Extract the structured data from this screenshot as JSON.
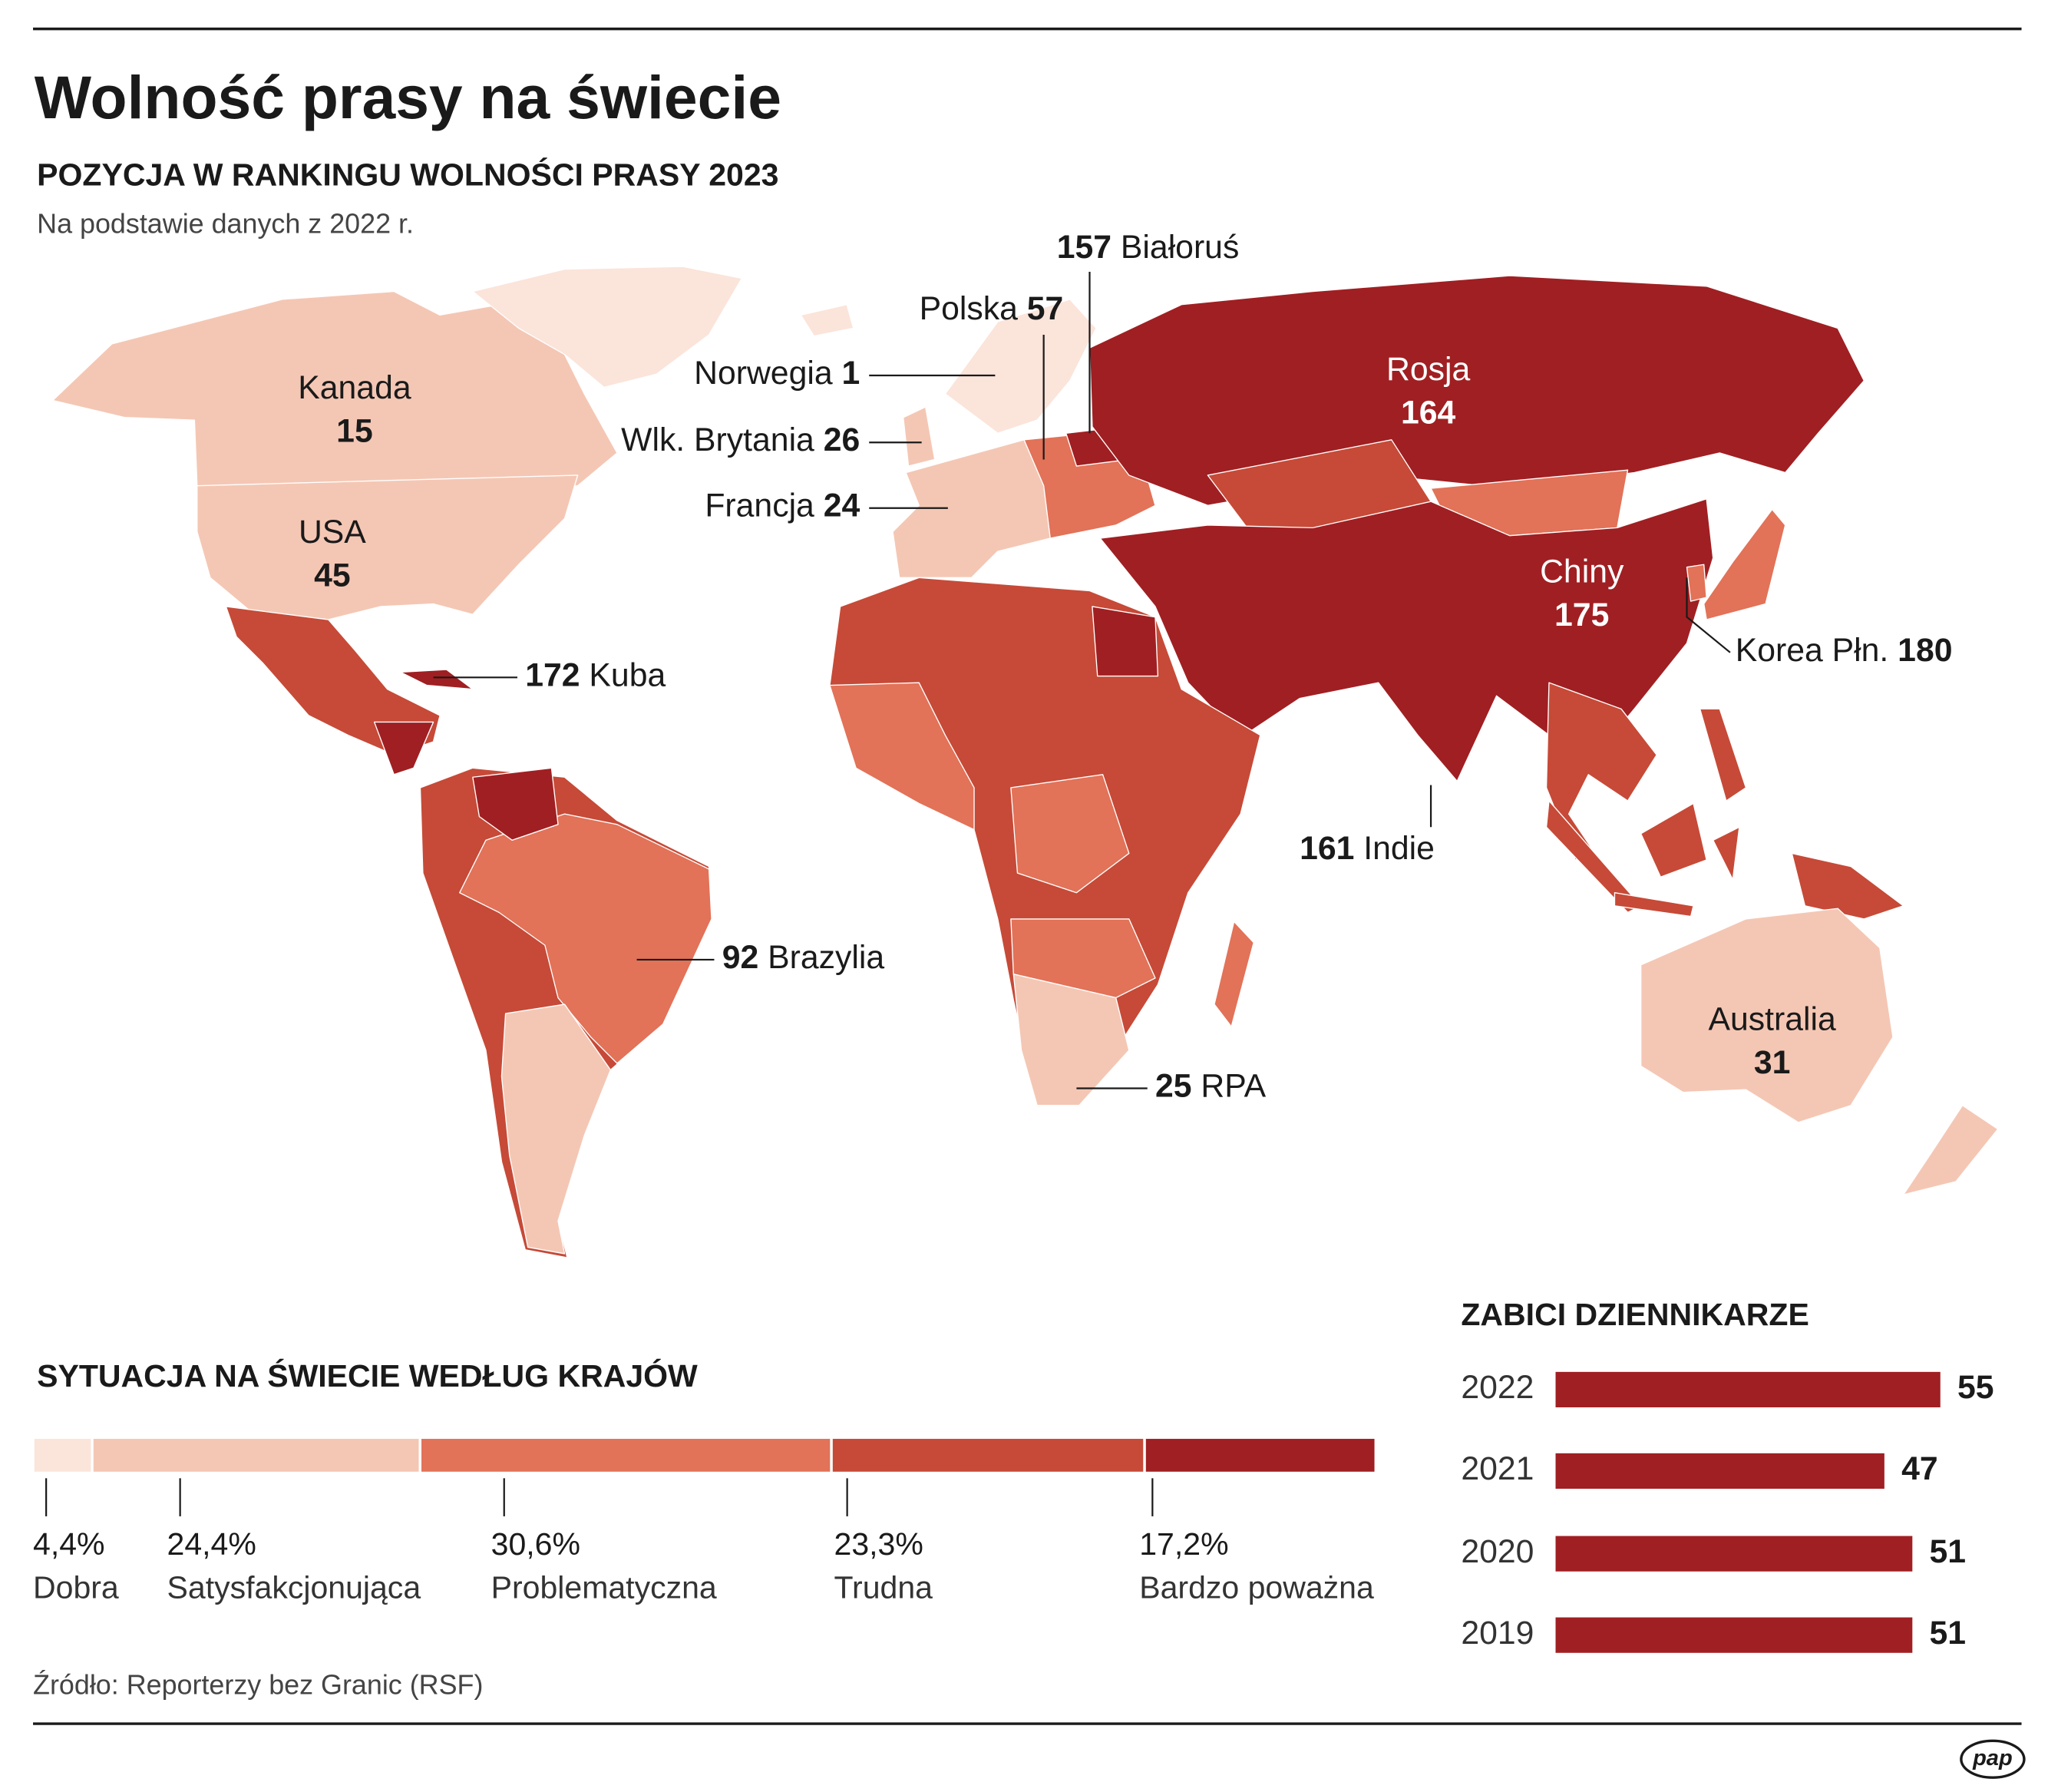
{
  "header": {
    "title": "Wolność prasy na świecie",
    "subtitle": "POZYCJA W RANKINGU WOLNOŚCI PRASY 2023",
    "note": "Na podstawie danych z 2022 r."
  },
  "map": {
    "labels": [
      {
        "name": "Kanada",
        "rank": 15
      },
      {
        "name": "USA",
        "rank": 45
      },
      {
        "name": "Rosja",
        "rank": 164
      },
      {
        "name": "Chiny",
        "rank": 175
      },
      {
        "name": "Australia",
        "rank": 31
      },
      {
        "name": "Polska",
        "rank": 57
      },
      {
        "name": "Białoruś",
        "rank": 157
      },
      {
        "name": "Norwegia",
        "rank": 1
      },
      {
        "name": "Wlk. Brytania",
        "rank": 26
      },
      {
        "name": "Francja",
        "rank": 24
      },
      {
        "name": "Kuba",
        "rank": 172
      },
      {
        "name": "Korea Płn.",
        "rank": 180
      },
      {
        "name": "Indie",
        "rank": 161
      },
      {
        "name": "Brazylia",
        "rank": 92
      },
      {
        "name": "RPA",
        "rank": 25
      }
    ]
  },
  "chart_data": [
    {
      "type": "stacked_bar",
      "title": "SYTUACJA NA ŚWIECIE WEDŁUG KRAJÓW",
      "series": [
        {
          "name": "Dobra",
          "color": "#fbe4da",
          "values": [
            4.4
          ],
          "value_labels": [
            "4,4%"
          ]
        },
        {
          "name": "Satysfakcjonująca",
          "color": "#f4c7b4",
          "values": [
            24.4
          ],
          "value_labels": [
            "24,4%"
          ]
        },
        {
          "name": "Problematyczna",
          "color": "#e27258",
          "values": [
            30.6
          ],
          "value_labels": [
            "30,6%"
          ]
        },
        {
          "name": "Trudna",
          "color": "#c64a37",
          "values": [
            23.3
          ],
          "value_labels": [
            "23,3%"
          ]
        },
        {
          "name": "Bardzo poważna",
          "color": "#a01f22",
          "values": [
            17.2
          ],
          "value_labels": [
            "17,2%"
          ]
        }
      ]
    },
    {
      "type": "bar",
      "title": "ZABICI DZIENNIKARZE",
      "categories": [
        "2022",
        "2021",
        "2020",
        "2019"
      ],
      "values": [
        55,
        47,
        51,
        51
      ],
      "color": "#a01f22"
    }
  ],
  "source": "Źródło: Reporterzy bez Granic (RSF)",
  "logo": "pap"
}
